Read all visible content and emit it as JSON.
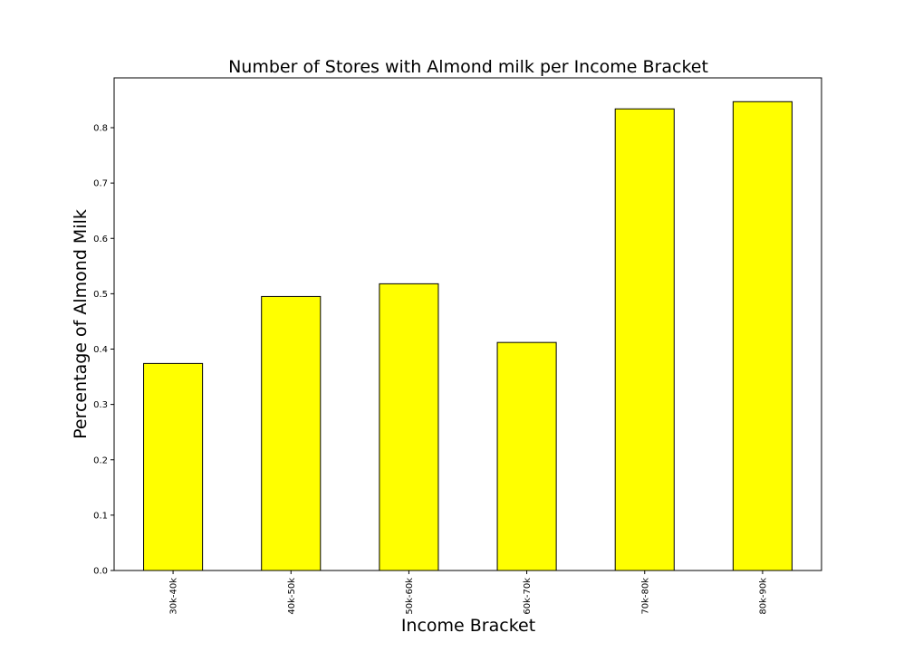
{
  "chart_data": {
    "type": "bar",
    "title": "Number of Stores with Almond milk per Income Bracket",
    "xlabel": "Income Bracket",
    "ylabel": "Percentage of Almond Milk",
    "categories": [
      "30k-40k",
      "40k-50k",
      "50k-60k",
      "60k-70k",
      "70k-80k",
      "80k-90k"
    ],
    "values": [
      0.374,
      0.495,
      0.518,
      0.412,
      0.834,
      0.847
    ],
    "ylim": [
      0,
      0.89
    ],
    "yticks": [
      "0.0",
      "0.1",
      "0.2",
      "0.3",
      "0.4",
      "0.5",
      "0.6",
      "0.7",
      "0.8"
    ],
    "grid": false,
    "bar_color": "#ffff00",
    "edge_color": "#000000"
  }
}
